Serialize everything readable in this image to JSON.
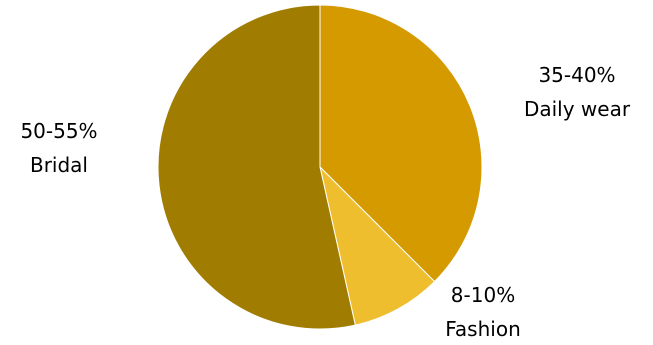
{
  "chart_data": {
    "type": "pie",
    "title": "",
    "slices": [
      {
        "label": "Daily wear",
        "range_label": "35-40%",
        "value": 37.5,
        "color": "#D49A00"
      },
      {
        "label": "Fashion",
        "range_label": "8-10%",
        "value": 9.0,
        "color": "#EFBE2E"
      },
      {
        "label": "Bridal",
        "range_label": "50-55%",
        "value": 53.5,
        "color": "#A07C00"
      }
    ],
    "start_angle_deg": 0,
    "direction": "clockwise",
    "legend": "none"
  }
}
